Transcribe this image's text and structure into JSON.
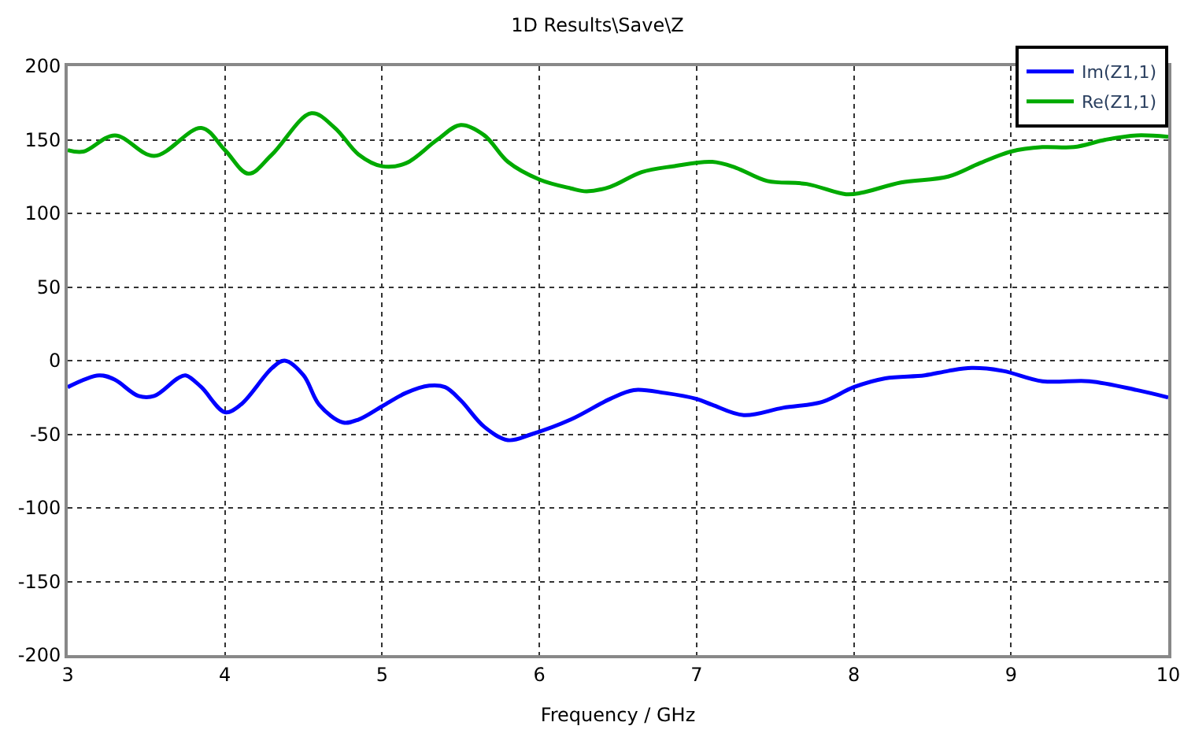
{
  "chart_data": {
    "type": "line",
    "title": "1D Results\\Save\\Z",
    "xlabel": "Frequency / GHz",
    "xlim": [
      3,
      10
    ],
    "xticks": [
      3,
      4,
      5,
      6,
      7,
      8,
      9,
      10
    ],
    "ylim": [
      -200,
      200
    ],
    "yticks": [
      -200,
      -150,
      -100,
      -50,
      0,
      50,
      100,
      150,
      200
    ],
    "grid": true,
    "legend": "top right",
    "line_style": "solid",
    "marker": "none",
    "series": [
      {
        "name": "Im(Z1,1)",
        "color": "#0000ff",
        "x": [
          3.0,
          3.2,
          3.3,
          3.45,
          3.55,
          3.7,
          3.75,
          3.85,
          4.0,
          4.1,
          4.3,
          4.38,
          4.5,
          4.6,
          4.75,
          4.85,
          5.0,
          5.15,
          5.3,
          5.4,
          5.5,
          5.65,
          5.8,
          5.95,
          6.2,
          6.45,
          6.6,
          6.8,
          7.0,
          7.1,
          7.3,
          7.55,
          7.8,
          8.0,
          8.2,
          8.45,
          8.6,
          8.75,
          8.95,
          9.2,
          9.5,
          9.8,
          10.0
        ],
        "values": [
          -18,
          -10,
          -13,
          -24,
          -24,
          -12,
          -10,
          -18,
          -35,
          -30,
          -5,
          0,
          -10,
          -30,
          -42,
          -40,
          -31,
          -22,
          -17,
          -18,
          -27,
          -45,
          -54,
          -50,
          -40,
          -26,
          -20,
          -22,
          -26,
          -30,
          -37,
          -32,
          -28,
          -18,
          -12,
          -10,
          -7,
          -5,
          -7,
          -14,
          -14,
          -20,
          -25
        ]
      },
      {
        "name": "Re(Z1,1)",
        "color": "#00aa00",
        "x": [
          3.0,
          3.1,
          3.3,
          3.55,
          3.85,
          4.0,
          4.15,
          4.3,
          4.55,
          4.7,
          4.85,
          5.0,
          5.15,
          5.35,
          5.5,
          5.65,
          5.8,
          6.0,
          6.2,
          6.3,
          6.45,
          6.65,
          6.85,
          7.1,
          7.25,
          7.45,
          7.7,
          7.95,
          8.05,
          8.3,
          8.6,
          8.8,
          9.0,
          9.2,
          9.4,
          9.6,
          9.8,
          10.0
        ],
        "values": [
          143,
          142,
          153,
          139,
          158,
          143,
          127,
          140,
          168,
          158,
          140,
          132,
          134,
          150,
          160,
          153,
          135,
          123,
          117,
          115,
          118,
          128,
          132,
          135,
          131,
          122,
          120,
          113,
          114,
          121,
          125,
          134,
          142,
          145,
          145,
          150,
          153,
          152
        ]
      }
    ]
  }
}
